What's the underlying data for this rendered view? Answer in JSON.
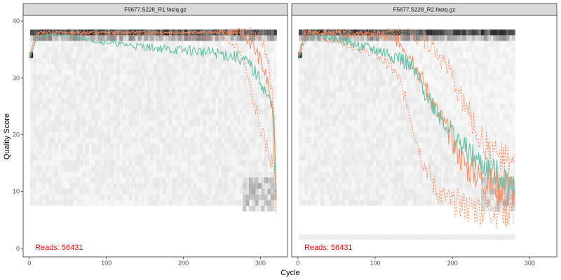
{
  "chart_data": {
    "type": "line",
    "xlabel": "Cycle",
    "ylabel": "Quality Score",
    "xlim": [
      -8,
      335
    ],
    "ylim": [
      -1.5,
      41
    ],
    "xticks": [
      0,
      100,
      200,
      300
    ],
    "yticks": [
      0,
      10,
      20,
      30,
      40
    ],
    "grid": false,
    "colors": {
      "mean": "#66c2a5",
      "quartile": "#fc8d62",
      "reads": "#ff0000",
      "heat": "#000000"
    },
    "panels": [
      {
        "title": "F5677.S228_R1.fastq.gz",
        "reads_label": "Reads:  56431",
        "cycles": 320,
        "mean": {
          "x": [
            1,
            5,
            10,
            20,
            30,
            40,
            50,
            60,
            70,
            80,
            90,
            100,
            110,
            120,
            130,
            140,
            150,
            160,
            170,
            180,
            190,
            200,
            210,
            220,
            230,
            240,
            250,
            260,
            270,
            280,
            285,
            290,
            295,
            300,
            305,
            310,
            315,
            318,
            320
          ],
          "y": [
            33.5,
            35.2,
            37.3,
            37.4,
            37.6,
            37.5,
            37.4,
            37.2,
            37.0,
            36.7,
            36.4,
            36.3,
            36.1,
            35.9,
            35.8,
            35.6,
            35.5,
            35.3,
            35.2,
            35.0,
            34.9,
            34.8,
            34.8,
            34.7,
            34.5,
            34.4,
            34.2,
            33.9,
            33.6,
            32.9,
            32.4,
            31.6,
            30.6,
            29.4,
            28.0,
            26.4,
            24.8,
            22.5,
            10.5
          ]
        },
        "q25": {
          "x": [
            1,
            5,
            10,
            50,
            100,
            150,
            200,
            250,
            270,
            280,
            285,
            290,
            295,
            300,
            305,
            310,
            315,
            318,
            320
          ],
          "y": [
            34,
            35,
            37.5,
            37.5,
            37.5,
            37.5,
            37.3,
            36.8,
            35.5,
            32,
            29,
            26,
            24,
            21,
            19,
            17,
            15,
            12,
            7
          ]
        },
        "q50": {
          "x": [
            1,
            5,
            10,
            270,
            280,
            285,
            290,
            295,
            300,
            305,
            310,
            315,
            320
          ],
          "y": [
            34,
            36,
            38,
            38,
            37.5,
            36.5,
            35.5,
            34.5,
            33,
            31,
            29,
            24,
            10
          ]
        },
        "q75": {
          "x": [
            1,
            5,
            10,
            285,
            290,
            295,
            300,
            305,
            310,
            315,
            320
          ],
          "y": [
            34,
            36,
            38,
            38,
            38,
            37.5,
            37,
            36,
            33,
            27,
            14
          ]
        }
      },
      {
        "title": "F5677.S228_R2.fastq.gz",
        "reads_label": "Reads:  56431",
        "cycles": 280,
        "mean": {
          "x": [
            1,
            5,
            10,
            20,
            30,
            40,
            50,
            60,
            70,
            80,
            90,
            100,
            110,
            120,
            130,
            140,
            150,
            160,
            170,
            180,
            190,
            200,
            210,
            220,
            230,
            240,
            250,
            260,
            270,
            280
          ],
          "y": [
            33.5,
            35.5,
            37.0,
            37.2,
            37.3,
            37.1,
            36.8,
            36.5,
            36.0,
            35.6,
            35.2,
            34.9,
            34.5,
            34.1,
            33.6,
            32.6,
            31.0,
            28.8,
            26.3,
            24.2,
            22.2,
            20.3,
            18.3,
            17.0,
            15.5,
            14.5,
            13.5,
            12.8,
            12.3,
            11.8
          ]
        },
        "q25": {
          "x": [
            1,
            5,
            10,
            50,
            100,
            120,
            130,
            140,
            150,
            160,
            170,
            180,
            190,
            200,
            210,
            220,
            240,
            260,
            280
          ],
          "y": [
            34,
            35,
            37,
            36.5,
            34,
            32,
            30,
            26,
            21,
            16,
            13,
            10,
            9,
            8,
            8,
            7,
            7,
            7,
            7
          ]
        },
        "q50": {
          "x": [
            1,
            5,
            10,
            100,
            120,
            130,
            140,
            150,
            160,
            170,
            180,
            190,
            200,
            210,
            220,
            230,
            240,
            260,
            280
          ],
          "y": [
            34,
            36,
            38,
            37.5,
            37,
            36.5,
            35,
            33,
            30,
            27,
            24,
            21.5,
            19,
            16,
            14,
            13,
            12,
            11,
            10.5
          ]
        },
        "q75": {
          "x": [
            1,
            5,
            10,
            130,
            140,
            150,
            160,
            170,
            180,
            190,
            200,
            210,
            220,
            230,
            240,
            260,
            280
          ],
          "y": [
            34,
            36,
            38,
            38,
            38,
            37.5,
            37,
            36,
            34.5,
            32.5,
            30,
            27,
            24,
            21,
            18.5,
            16,
            14
          ]
        }
      }
    ]
  }
}
